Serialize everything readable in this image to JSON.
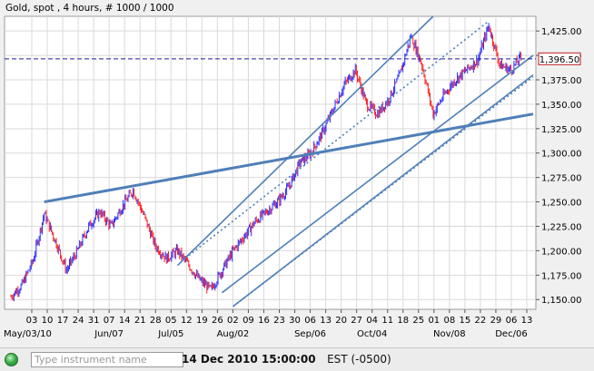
{
  "chart_title": "Gold, spot , 4 hours, # 1000 / 1000",
  "chart_data": {
    "type": "candlestick",
    "title": "Gold, spot , 4 hours, # 1000 / 1000",
    "ylim": [
      1140,
      1440
    ],
    "y_ticks": [
      "1,425.00",
      "1,400.00",
      "1,375.00",
      "1,350.00",
      "1,325.00",
      "1,300.00",
      "1,275.00",
      "1,250.00",
      "1,225.00",
      "1,200.00",
      "1,175.00",
      "1,150.00"
    ],
    "y_tick_values": [
      1425,
      1400,
      1375,
      1350,
      1325,
      1300,
      1275,
      1250,
      1225,
      1200,
      1175,
      1150
    ],
    "x_day_labels": [
      "03",
      "10",
      "17",
      "24",
      "31",
      "07",
      "14",
      "21",
      "28",
      "05",
      "12",
      "19",
      "26",
      "02",
      "09",
      "16",
      "23",
      "30",
      "06",
      "13",
      "20",
      "27",
      "04",
      "11",
      "18",
      "25",
      "01",
      "08",
      "15",
      "22",
      "29",
      "06",
      "13"
    ],
    "x_month_labels": [
      "May/03/10",
      "Jun/07",
      "Jul/05",
      "Aug/02",
      "Sep/06",
      "Oct/04",
      "Nov/08",
      "Dec/06"
    ],
    "current_price_label": "1,396.50",
    "current_price": 1396.5,
    "approx_close_path": [
      [
        0,
        1153
      ],
      [
        1,
        1165
      ],
      [
        2,
        1190
      ],
      [
        3,
        1238
      ],
      [
        4,
        1210
      ],
      [
        5,
        1180
      ],
      [
        6,
        1200
      ],
      [
        7,
        1225
      ],
      [
        8,
        1240
      ],
      [
        9,
        1225
      ],
      [
        10,
        1245
      ],
      [
        11,
        1262
      ],
      [
        12,
        1235
      ],
      [
        13,
        1205
      ],
      [
        14,
        1192
      ],
      [
        15,
        1200
      ],
      [
        16,
        1185
      ],
      [
        17,
        1170
      ],
      [
        18,
        1160
      ],
      [
        19,
        1180
      ],
      [
        20,
        1200
      ],
      [
        21,
        1215
      ],
      [
        22,
        1230
      ],
      [
        23,
        1240
      ],
      [
        24,
        1250
      ],
      [
        25,
        1265
      ],
      [
        26,
        1290
      ],
      [
        27,
        1300
      ],
      [
        28,
        1320
      ],
      [
        29,
        1345
      ],
      [
        30,
        1370
      ],
      [
        31,
        1385
      ],
      [
        32,
        1350
      ],
      [
        33,
        1340
      ],
      [
        34,
        1355
      ],
      [
        35,
        1380
      ],
      [
        36,
        1420
      ],
      [
        37,
        1390
      ],
      [
        38,
        1340
      ],
      [
        39,
        1360
      ],
      [
        40,
        1375
      ],
      [
        41,
        1385
      ],
      [
        42,
        1395
      ],
      [
        43,
        1430
      ],
      [
        44,
        1390
      ],
      [
        45,
        1385
      ],
      [
        46,
        1400
      ]
    ],
    "trendlines": [
      {
        "from": [
          3,
          1250
        ],
        "to": [
          47,
          1340
        ]
      },
      {
        "from": [
          15,
          1185
        ],
        "to": [
          38,
          1440
        ]
      },
      {
        "from": [
          19,
          1157
        ],
        "to": [
          47,
          1400
        ]
      },
      {
        "from": [
          20,
          1143
        ],
        "to": [
          47,
          1380
        ]
      }
    ],
    "dotted_channels": [
      {
        "from": [
          16,
          1195
        ],
        "to": [
          43,
          1435
        ]
      },
      {
        "from": [
          20,
          1143
        ],
        "to": [
          47,
          1378
        ]
      }
    ],
    "horizontal_line": 1396.5
  },
  "status": {
    "instrument_placeholder": "Type instrument name",
    "datetime": "14 Dec 2010 15:00:00",
    "timezone": "EST (-0500)"
  },
  "colors": {
    "up": "#2b2bff",
    "down": "#ff2020",
    "trend": "#4f7fb8",
    "price_line": "#1a1aa8",
    "grid": "#d9d9d9"
  }
}
